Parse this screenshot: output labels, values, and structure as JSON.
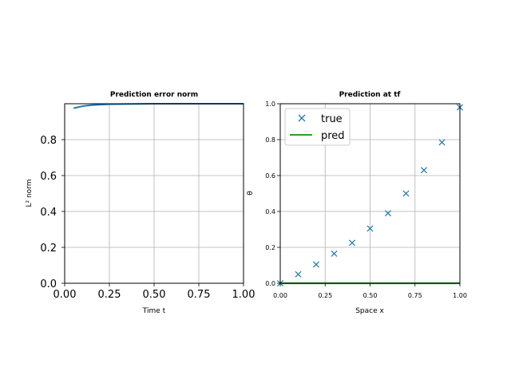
{
  "chart_data": [
    {
      "type": "line",
      "title": "Prediction error norm",
      "xlabel": "Time t",
      "ylabel": "L² norm",
      "xlim": [
        0.0,
        1.0
      ],
      "ylim": [
        0.0,
        1.0
      ],
      "xticks": [
        "0.00",
        "0.25",
        "0.50",
        "0.75",
        "1.00"
      ],
      "yticks": [
        "0.0",
        "0.2",
        "0.4",
        "0.6",
        "0.8"
      ],
      "grid": true,
      "series": [
        {
          "color": "#1f77b4",
          "x": [
            0.05,
            0.08,
            0.11,
            0.15,
            0.2,
            0.25,
            0.3,
            0.4,
            0.5,
            0.6,
            0.7,
            0.8,
            0.9,
            1.0
          ],
          "y": [
            0.975,
            0.982,
            0.988,
            0.992,
            0.995,
            0.997,
            0.998,
            0.999,
            1.0,
            1.0,
            1.0,
            1.0,
            1.0,
            1.0
          ]
        }
      ]
    },
    {
      "type": "scatter",
      "title": "Prediction at tf",
      "xlabel": "Space x",
      "ylabel": "θ",
      "xlim": [
        0.0,
        1.0
      ],
      "ylim": [
        0.0,
        1.0
      ],
      "xticks": [
        "0.00",
        "0.25",
        "0.50",
        "0.75",
        "1.00"
      ],
      "yticks": [
        "0.0",
        "0.2",
        "0.4",
        "0.6",
        "0.8",
        "1.0"
      ],
      "grid": true,
      "legend": "top-left",
      "series": [
        {
          "name": "true",
          "marker": "x",
          "color": "#1f77b4",
          "x": [
            0.0,
            0.1,
            0.2,
            0.3,
            0.4,
            0.5,
            0.6,
            0.7,
            0.8,
            0.9,
            1.0
          ],
          "y": [
            0.0,
            0.05,
            0.105,
            0.165,
            0.225,
            0.305,
            0.39,
            0.5,
            0.63,
            0.785,
            0.98
          ]
        },
        {
          "name": "pred",
          "marker": "line",
          "color": "#2ca02c",
          "x": [
            0.0,
            1.0
          ],
          "y": [
            0.0,
            0.0
          ]
        }
      ]
    }
  ]
}
